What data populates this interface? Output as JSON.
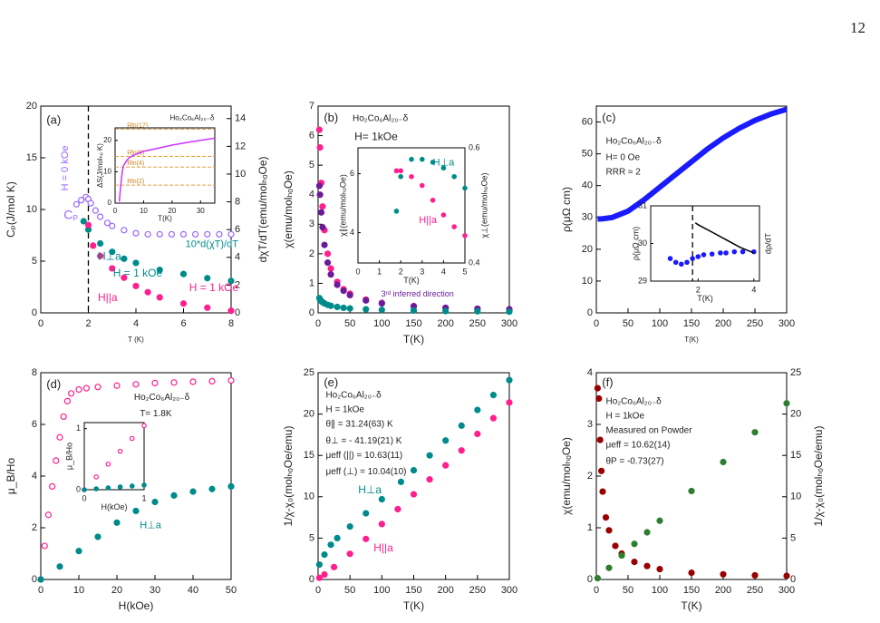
{
  "page_number": "12",
  "chart_data": [
    {
      "type": "scatter",
      "ylabel": "Cₚ(J/mol K)",
      "xlabel": "T (K)",
      "y2label": "dχT/dT(emu/molₕₒOe)",
      "xlim": [
        0,
        8
      ],
      "xticks": [
        0,
        2,
        4,
        6,
        8
      ],
      "ylim": [
        0,
        20
      ],
      "yticks": [
        0,
        5,
        10,
        15,
        20
      ],
      "y2lim": [
        0,
        14.9
      ],
      "y2ticks": [
        0,
        2,
        4,
        6,
        8,
        10,
        12,
        14
      ],
      "vlines": [
        2
      ],
      "annotations": [
        "(a)",
        "H = 0 kOe",
        "Cₚ",
        "H⊥a",
        "10*d(χT)/dT",
        "H = 1 kOe",
        "H||a",
        "H = 1 kOe"
      ],
      "series": [
        {
          "color": "#9966ff",
          "marker": "open",
          "x": [
            1.5,
            1.7,
            1.9,
            2.0,
            2.1,
            2.3,
            2.5,
            2.8,
            3.0,
            3.5,
            4,
            4.5,
            5,
            5.5,
            6,
            6.5,
            7,
            7.5,
            8
          ],
          "values": [
            10.5,
            10.9,
            11.2,
            11.0,
            10.6,
            9.9,
            9.3,
            8.7,
            8.4,
            8.0,
            7.7,
            7.6,
            7.6,
            7.6,
            7.6,
            7.6,
            7.6,
            7.6,
            7.6
          ]
        },
        {
          "color": "#008b8b",
          "marker": "filled",
          "axis": "y2",
          "x": [
            1.8,
            2,
            2.5,
            3,
            3.5,
            4,
            5,
            6,
            7,
            8
          ],
          "values": [
            6.6,
            6.0,
            5.0,
            4.4,
            3.9,
            3.6,
            3.1,
            2.8,
            2.5,
            2.3
          ]
        },
        {
          "color": "#ff1f8e",
          "marker": "filled",
          "x": [
            2,
            2.2,
            2.5,
            3,
            3.5,
            4,
            4.5,
            5,
            6,
            7,
            8
          ],
          "values": [
            8.5,
            6.5,
            5.5,
            4.3,
            3.4,
            2.6,
            2.0,
            1.5,
            0.9,
            0.5,
            0.2
          ]
        }
      ]
    },
    {
      "type": "line",
      "xlabel": "T(K)",
      "ylabel": "ΔS(J/molₕₒ K)",
      "xlim": [
        0,
        35
      ],
      "xticks": [
        0,
        10,
        20,
        30
      ],
      "ylim": [
        0,
        24
      ],
      "yticks": [
        0,
        10,
        20
      ],
      "annotations": [
        "Ho₂Co₆Al₂₀₋δ"
      ],
      "hlines": [
        {
          "value": 23.55,
          "label": "Rln(17)"
        },
        {
          "value": 14.9,
          "label": "Rln(6)"
        },
        {
          "value": 11.5,
          "label": "Rln(4)"
        },
        {
          "value": 5.76,
          "label": "Rln(2)"
        }
      ],
      "series": [
        {
          "color": "#cc33ff",
          "marker": "line",
          "x": [
            1.5,
            2,
            2.5,
            3,
            4,
            5,
            7,
            10,
            15,
            20,
            25,
            30,
            35
          ],
          "values": [
            0.5,
            6,
            10,
            12,
            13.5,
            14.5,
            15.5,
            16.5,
            17.5,
            18.5,
            19.3,
            20,
            20.7
          ]
        }
      ]
    },
    {
      "type": "scatter",
      "xlabel": "T(K)",
      "ylabel": "χ(emu/molₕₒOe)",
      "xlim": [
        0,
        300
      ],
      "xticks": [
        0,
        50,
        100,
        150,
        200,
        250,
        300
      ],
      "ylim": [
        0,
        7
      ],
      "yticks": [
        0,
        1,
        2,
        3,
        4,
        5,
        6,
        7
      ],
      "annotations": [
        "(b)",
        "Ho₂Co₆Al₂₀₋δ",
        "H= 1kOe",
        "3ʳᵈ inferred direction"
      ],
      "series": [
        {
          "color": "#ff1f8e",
          "marker": "filled",
          "x": [
            2,
            3,
            5,
            7,
            10,
            15,
            20,
            30,
            40,
            50,
            75,
            100,
            150,
            200,
            250,
            300
          ],
          "values": [
            6.2,
            5.6,
            4.4,
            3.6,
            2.8,
            2.0,
            1.5,
            1.05,
            0.8,
            0.65,
            0.45,
            0.34,
            0.23,
            0.17,
            0.14,
            0.12
          ]
        },
        {
          "color": "#6a1b9a",
          "marker": "filled",
          "x": [
            2,
            3,
            5,
            7,
            10,
            15,
            20,
            30,
            40,
            50,
            75,
            100,
            150,
            200,
            250,
            300
          ],
          "values": [
            4.3,
            4.0,
            3.4,
            2.9,
            2.3,
            1.7,
            1.3,
            0.95,
            0.75,
            0.6,
            0.42,
            0.32,
            0.22,
            0.17,
            0.14,
            0.12
          ]
        },
        {
          "color": "#008b8b",
          "marker": "filled",
          "x": [
            2,
            3,
            5,
            7,
            10,
            15,
            20,
            30,
            40,
            50,
            75,
            100,
            150,
            200,
            250,
            300
          ],
          "values": [
            0.5,
            0.45,
            0.4,
            0.36,
            0.32,
            0.27,
            0.24,
            0.2,
            0.17,
            0.15,
            0.12,
            0.1,
            0.08,
            0.06,
            0.05,
            0.04
          ]
        }
      ]
    },
    {
      "type": "scatter",
      "xlabel": "T(K)",
      "ylabel": "χ∥(emu/molₕₒOe)",
      "y2label": "χ⊥(emu/molₕₒOe)",
      "xlim": [
        0,
        5
      ],
      "xticks": [
        0,
        1,
        2,
        3,
        4,
        5
      ],
      "ylim": [
        2.97,
        6.88
      ],
      "yticks": [
        4,
        6
      ],
      "y2lim": [
        0.4,
        0.6
      ],
      "y2ticks": [
        0.4,
        0.6
      ],
      "annotations": [
        "H⊥a",
        "H||a"
      ],
      "series": [
        {
          "color": "#ff1f8e",
          "marker": "filled",
          "x": [
            1.8,
            2,
            2.5,
            3,
            3.5,
            4,
            4.5,
            5
          ],
          "values": [
            6.1,
            6.1,
            5.9,
            5.6,
            5.1,
            4.6,
            4.2,
            3.9
          ]
        },
        {
          "color": "#008b8b",
          "marker": "filled",
          "axis": "y2",
          "x": [
            1.8,
            2,
            2.5,
            3,
            3.5,
            4,
            4.5,
            5
          ],
          "values": [
            0.49,
            0.55,
            0.58,
            0.58,
            0.575,
            0.565,
            0.55,
            0.53
          ]
        }
      ]
    },
    {
      "type": "line",
      "xlabel": "T(K)",
      "ylabel": "ρ(μΩ cm)",
      "xlim": [
        0,
        300
      ],
      "xticks": [
        0,
        50,
        100,
        150,
        200,
        250,
        300
      ],
      "ylim": [
        0,
        65
      ],
      "yticks": [
        0,
        10,
        20,
        30,
        40,
        50,
        60
      ],
      "annotations": [
        "(c)",
        "Ho₂Co₆Al₂₀₋δ",
        "H= 0 Oe",
        "RRR ≈ 2"
      ],
      "series": [
        {
          "color": "#1a1aff",
          "marker": "thick",
          "x": [
            2,
            10,
            25,
            50,
            75,
            100,
            125,
            150,
            175,
            200,
            225,
            250,
            275,
            300
          ],
          "values": [
            29.5,
            29.6,
            30,
            32,
            35.5,
            39.5,
            43.5,
            47.5,
            51.5,
            55,
            58,
            60.5,
            62.5,
            64
          ]
        }
      ]
    },
    {
      "type": "scatter",
      "xlabel": "T(K)",
      "ylabel": "ρ(μΩ cm)",
      "y2label": "dρ/dT",
      "xlim": [
        0.3,
        4.2
      ],
      "xticks": [
        2,
        4
      ],
      "ylim": [
        29,
        31
      ],
      "yticks": [
        29,
        30,
        31
      ],
      "vlines": [
        1.8
      ],
      "series": [
        {
          "color": "#1a1aff",
          "marker": "filled",
          "x": [
            1,
            1.2,
            1.4,
            1.6,
            1.8,
            2,
            2.2,
            2.5,
            2.8,
            3,
            3.3,
            3.6,
            4
          ],
          "values": [
            29.6,
            29.5,
            29.45,
            29.5,
            29.6,
            29.65,
            29.7,
            29.72,
            29.75,
            29.75,
            29.78,
            29.78,
            29.78
          ]
        },
        {
          "color": "#000000",
          "marker": "line",
          "x": [
            1.9,
            2,
            2.5,
            3,
            3.5,
            4
          ],
          "values": [
            30.55,
            30.5,
            30.3,
            30.1,
            29.9,
            29.75
          ]
        }
      ]
    },
    {
      "type": "scatter",
      "xlabel": "H(kOe)",
      "ylabel": "μ_B/Ho",
      "xlim": [
        0,
        50
      ],
      "xticks": [
        0,
        10,
        20,
        30,
        40,
        50
      ],
      "ylim": [
        0,
        8
      ],
      "yticks": [
        0,
        2,
        4,
        6,
        8
      ],
      "annotations": [
        "(d)",
        "Ho₂Co₆Al₂₀₋δ",
        "T= 1.8K",
        "H||a",
        "H⊥a"
      ],
      "series": [
        {
          "color": "#ff1f8e",
          "marker": "open",
          "x": [
            0,
            1,
            2,
            3,
            4,
            5,
            6,
            7,
            8,
            10,
            12,
            15,
            20,
            25,
            30,
            35,
            40,
            45,
            50
          ],
          "values": [
            0,
            1.3,
            2.5,
            3.6,
            4.6,
            5.5,
            6.3,
            6.9,
            7.2,
            7.35,
            7.4,
            7.45,
            7.5,
            7.55,
            7.6,
            7.62,
            7.65,
            7.67,
            7.7
          ]
        },
        {
          "color": "#008b8b",
          "marker": "filled",
          "x": [
            0,
            5,
            10,
            15,
            20,
            25,
            30,
            35,
            40,
            45,
            50
          ],
          "values": [
            0,
            0.5,
            1.1,
            1.65,
            2.2,
            2.65,
            3.0,
            3.25,
            3.4,
            3.5,
            3.6
          ]
        }
      ]
    },
    {
      "type": "scatter",
      "xlabel": "H(kOe)",
      "ylabel": "μ_B/Ho",
      "xlim": [
        0,
        1
      ],
      "xticks": [
        0,
        1
      ],
      "ylim": [
        0,
        1.1
      ],
      "yticks": [
        0,
        1
      ],
      "series": [
        {
          "color": "#ff1f8e",
          "marker": "open",
          "x": [
            0,
            0.2,
            0.4,
            0.6,
            0.8,
            1
          ],
          "values": [
            0,
            0.21,
            0.42,
            0.63,
            0.84,
            1.05
          ]
        },
        {
          "color": "#008b8b",
          "marker": "filled",
          "x": [
            0,
            0.2,
            0.4,
            0.6,
            0.8,
            1
          ],
          "values": [
            0,
            0.015,
            0.03,
            0.045,
            0.06,
            0.075
          ]
        }
      ]
    },
    {
      "type": "scatter",
      "xlabel": "T(K)",
      "ylabel": "1/χ-χ₀(molₕₒOe/emu)",
      "xlim": [
        0,
        300
      ],
      "xticks": [
        0,
        50,
        100,
        150,
        200,
        250,
        300
      ],
      "ylim": [
        0,
        25
      ],
      "yticks": [
        0,
        5,
        10,
        15,
        20,
        25
      ],
      "annotations": [
        "(e)",
        "Ho₂Co₆Al₂₀₋δ",
        "H = 1kOe",
        "θ∥ = 31.24(63) K",
        "θ⊥ = - 41.19(21) K",
        "μeff (||) = 10.63(11)",
        "μeff (⊥) = 10.04(10)",
        "H⊥a",
        "H||a"
      ],
      "series": [
        {
          "color": "#008b8b",
          "marker": "filled",
          "x": [
            2,
            10,
            20,
            30,
            50,
            75,
            100,
            130,
            150,
            175,
            200,
            225,
            250,
            275,
            300
          ],
          "values": [
            1.8,
            3.0,
            4.2,
            5.0,
            6.4,
            8.0,
            9.7,
            11.8,
            13.2,
            15.0,
            16.8,
            18.6,
            20.5,
            22.3,
            24.1
          ]
        },
        {
          "color": "#ff1f8e",
          "marker": "filled",
          "x": [
            2,
            10,
            25,
            50,
            75,
            100,
            125,
            150,
            175,
            200,
            225,
            250,
            275,
            300
          ],
          "values": [
            0.2,
            0.6,
            1.5,
            3.1,
            4.9,
            6.7,
            8.5,
            10.3,
            12.1,
            13.8,
            15.6,
            17.6,
            19.5,
            21.4
          ]
        }
      ]
    },
    {
      "type": "scatter",
      "xlabel": "T(K)",
      "ylabel": "χ(emu/molₕₒOe)",
      "y2label": "1/χ-χ₀(molₕₒOe/emu)",
      "xlim": [
        0,
        300
      ],
      "xticks": [
        0,
        50,
        100,
        150,
        200,
        250,
        300
      ],
      "ylim": [
        0,
        4
      ],
      "yticks": [
        0,
        1,
        2,
        3,
        4
      ],
      "y2lim": [
        0,
        25
      ],
      "y2ticks": [
        0,
        5,
        10,
        15,
        20,
        25
      ],
      "annotations": [
        "(f)",
        "Ho₂Co₆Al₂₀₋δ",
        "H = 1kOe",
        "Measured on Powder",
        "μeff = 10.62(14)",
        "θP = -0.73(27)"
      ],
      "series": [
        {
          "color": "#990000",
          "marker": "filled",
          "x": [
            2,
            4,
            6,
            8,
            10,
            15,
            20,
            30,
            40,
            60,
            80,
            100,
            150,
            200,
            250,
            300
          ],
          "values": [
            3.7,
            3.5,
            2.7,
            2.1,
            1.7,
            1.2,
            0.95,
            0.65,
            0.5,
            0.34,
            0.26,
            0.2,
            0.13,
            0.1,
            0.08,
            0.07
          ]
        },
        {
          "color": "#2e7d32",
          "marker": "filled",
          "axis": "y2",
          "x": [
            2,
            20,
            40,
            60,
            80,
            100,
            150,
            200,
            250,
            300
          ],
          "values": [
            0.15,
            1.4,
            2.9,
            4.3,
            5.7,
            7.1,
            10.7,
            14.2,
            17.8,
            21.3
          ]
        }
      ]
    }
  ]
}
